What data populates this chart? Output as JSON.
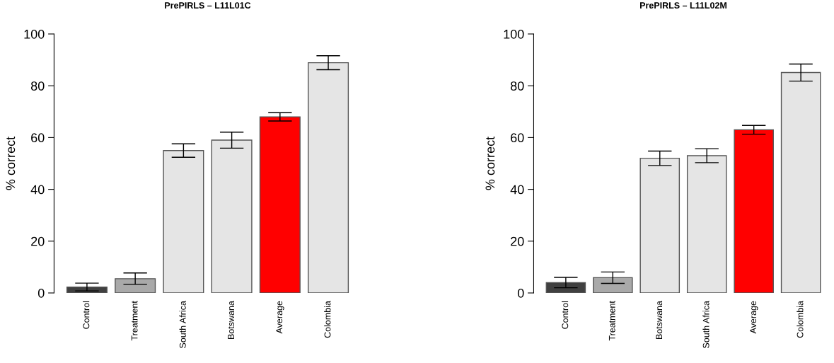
{
  "chart_data": [
    {
      "type": "bar",
      "title": "PrePIRLS – L11L01C",
      "ylabel": "% correct",
      "categories": [
        "Control",
        "Treatment",
        "South Africa",
        "Botswana",
        "Average",
        "Colombia"
      ],
      "values": [
        2.3,
        5.5,
        55,
        59,
        68,
        88.9
      ],
      "errors": [
        1.5,
        2.2,
        2.6,
        3.1,
        1.6,
        2.7
      ],
      "colors": [
        "#404040",
        "#a9a9a9",
        "#e5e5e5",
        "#e5e5e5",
        "#ff0000",
        "#e5e5e5"
      ],
      "ylim": [
        0,
        100
      ],
      "yticks": [
        0,
        20,
        40,
        60,
        80,
        100
      ]
    },
    {
      "type": "bar",
      "title": "PrePIRLS – L11L02M",
      "ylabel": "% correct",
      "categories": [
        "Control",
        "Treatment",
        "Botswana",
        "South Africa",
        "Average",
        "Colombia"
      ],
      "values": [
        4,
        5.9,
        52,
        53,
        63,
        85.1
      ],
      "errors": [
        2,
        2.2,
        2.8,
        2.7,
        1.7,
        3.3
      ],
      "colors": [
        "#404040",
        "#a9a9a9",
        "#e5e5e5",
        "#e5e5e5",
        "#ff0000",
        "#e5e5e5"
      ],
      "ylim": [
        0,
        100
      ],
      "yticks": [
        0,
        20,
        40,
        60,
        80,
        100
      ]
    }
  ]
}
